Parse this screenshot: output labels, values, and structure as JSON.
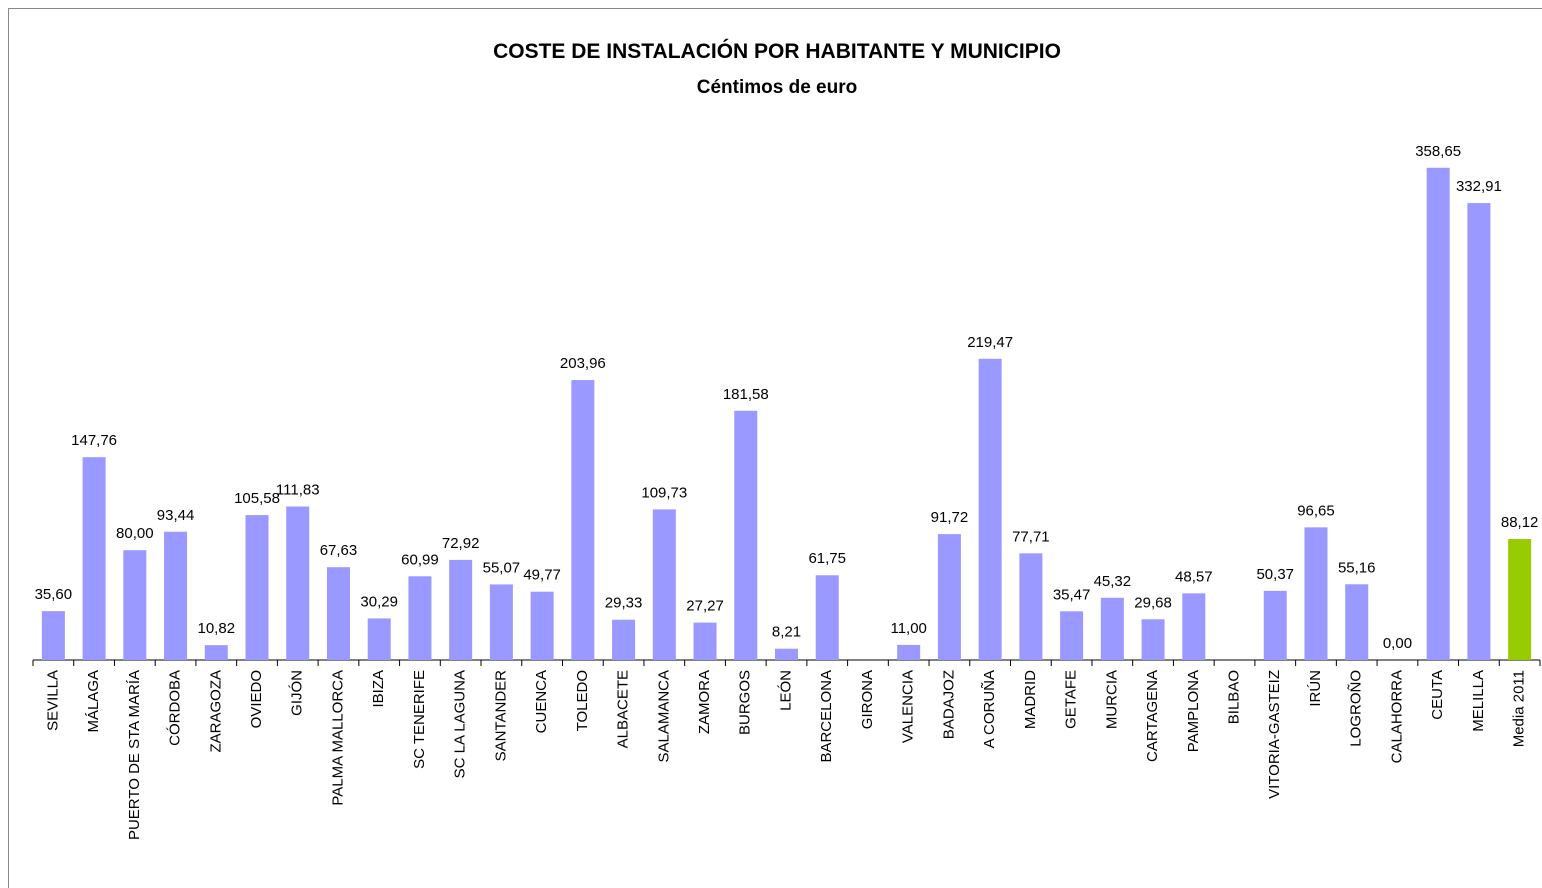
{
  "chart_data": {
    "type": "bar",
    "title": "COSTE DE INSTALACIÓN POR HABITANTE Y MUNICIPIO",
    "subtitle": "Céntimos de euro",
    "categories": [
      "SEVILLA",
      "MÁLAGA",
      "PUERTO DE STA MARÍA",
      "CÓRDOBA",
      "ZARAGOZA",
      "OVIEDO",
      "GIJÓN",
      "PALMA MALLORCA",
      "IBIZA",
      "SC TENERIFE",
      "SC LA LAGUNA",
      "SANTANDER",
      "CUENCA",
      "TOLEDO",
      "ALBACETE",
      "SALAMANCA",
      "ZAMORA",
      "BURGOS",
      "LEÓN",
      "BARCELONA",
      "GIRONA",
      "VALENCIA",
      "BADAJOZ",
      "A CORUÑA",
      "MADRID",
      "GETAFE",
      "MURCIA",
      "CARTAGENA",
      "PAMPLONA",
      "BILBAO",
      "VITORIA-GASTEIZ",
      "IRÚN",
      "LOGROÑO",
      "CALAHORRA",
      "CEUTA",
      "MELILLA",
      "Media 2011"
    ],
    "values": [
      35.6,
      147.76,
      80.0,
      93.44,
      10.82,
      105.58,
      111.83,
      67.63,
      30.29,
      60.99,
      72.92,
      55.07,
      49.77,
      203.96,
      29.33,
      109.73,
      27.27,
      181.58,
      8.21,
      61.75,
      null,
      11.0,
      91.72,
      219.47,
      77.71,
      35.47,
      45.32,
      29.68,
      48.57,
      null,
      50.37,
      96.65,
      55.16,
      0.0,
      358.65,
      332.91,
      88.12
    ],
    "value_labels": [
      "35,60",
      "147,76",
      "80,00",
      "93,44",
      "10,82",
      "105,58",
      "111,83",
      "67,63",
      "30,29",
      "60,99",
      "72,92",
      "55,07",
      "49,77",
      "203,96",
      "29,33",
      "109,73",
      "27,27",
      "181,58",
      "8,21",
      "61,75",
      null,
      "11,00",
      "91,72",
      "219,47",
      "77,71",
      "35,47",
      "45,32",
      "29,68",
      "48,57",
      null,
      "50,37",
      "96,65",
      "55,16",
      "0,00",
      "358,65",
      "332,91",
      "88,12"
    ],
    "colors": [
      "#9999ff",
      "#9999ff",
      "#9999ff",
      "#9999ff",
      "#9999ff",
      "#9999ff",
      "#9999ff",
      "#9999ff",
      "#9999ff",
      "#9999ff",
      "#9999ff",
      "#9999ff",
      "#9999ff",
      "#9999ff",
      "#9999ff",
      "#9999ff",
      "#9999ff",
      "#9999ff",
      "#9999ff",
      "#9999ff",
      "#9999ff",
      "#9999ff",
      "#9999ff",
      "#9999ff",
      "#9999ff",
      "#9999ff",
      "#9999ff",
      "#9999ff",
      "#9999ff",
      "#9999ff",
      "#9999ff",
      "#9999ff",
      "#9999ff",
      "#9999ff",
      "#9999ff",
      "#9999ff",
      "#99cc00"
    ],
    "ylim": [
      0,
      400
    ]
  }
}
